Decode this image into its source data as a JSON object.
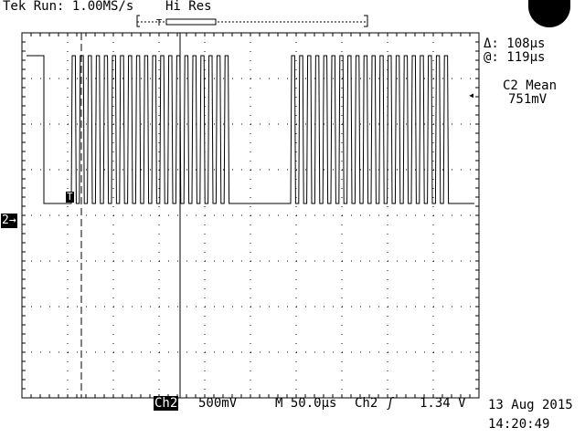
{
  "header": {
    "status": "Tek Run: 1.00MS/s",
    "acq_mode": "Hi Res"
  },
  "cursor_readout": {
    "delta": "Δ: 108µs",
    "at": "@: 119µs"
  },
  "measurement": {
    "name": "C2 Mean",
    "value": "751mV"
  },
  "channel_marker": "2→",
  "trigger_marker": "T",
  "footer": {
    "channel": "Ch2",
    "volts_per_div": "500mV",
    "timebase": "M 50.0µs",
    "trigger_source": "Ch2",
    "trigger_slope_icon": "rising-edge-icon",
    "trigger_level": "1.34 V",
    "date": "13 Aug 2015",
    "time": "14:20:49"
  },
  "waveform": {
    "high_level_v": 1.76,
    "low_level_v": 0.0,
    "time_per_div_us": 50,
    "horizontal_divisions": 10,
    "vertical_divisions": 8,
    "bursts": [
      {
        "pulses": 20,
        "period_us": 8.8
      },
      {
        "pulses": 20,
        "period_us": 8.8
      }
    ],
    "cursors_us": [
      0,
      108
    ]
  },
  "colors": {
    "trace": "#000000",
    "graticule": "#000000",
    "background": "#ffffff"
  }
}
